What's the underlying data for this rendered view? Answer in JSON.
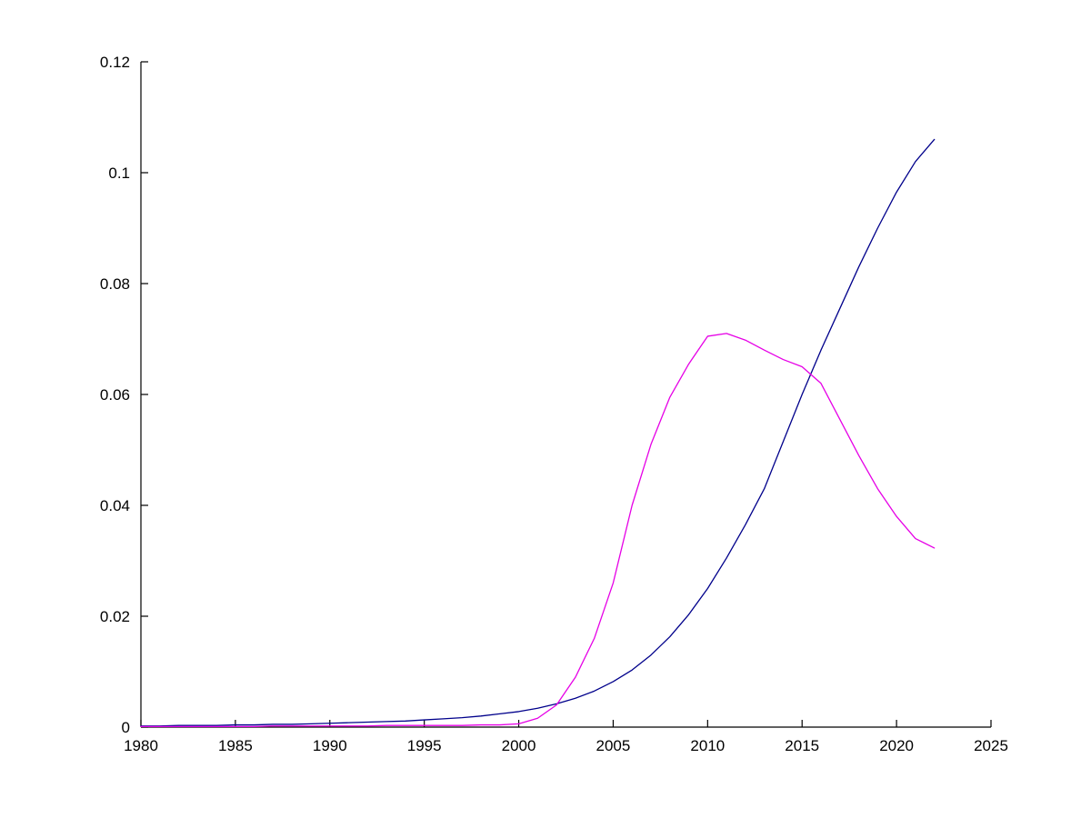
{
  "figure": {
    "background": "#ffffff",
    "axis_color": "#000000"
  },
  "chart_data": {
    "type": "line",
    "title": "",
    "xlabel": "",
    "ylabel": "",
    "xlim": [
      1980,
      2025
    ],
    "ylim": [
      0,
      0.12
    ],
    "xticks": [
      1980,
      1985,
      1990,
      1995,
      2000,
      2005,
      2010,
      2015,
      2020,
      2025
    ],
    "xtick_labels": [
      "1980",
      "1985",
      "1990",
      "1995",
      "2000",
      "2005",
      "2010",
      "2015",
      "2020",
      "2025"
    ],
    "yticks": [
      0,
      0.02,
      0.04,
      0.06,
      0.08,
      0.1,
      0.12
    ],
    "ytick_labels": [
      "0",
      "0.02",
      "0.04",
      "0.06",
      "0.08",
      "0.1",
      "0.12"
    ],
    "grid": false,
    "legend": null,
    "x": [
      1980,
      1981,
      1982,
      1983,
      1984,
      1985,
      1986,
      1987,
      1988,
      1989,
      1990,
      1991,
      1992,
      1993,
      1994,
      1995,
      1996,
      1997,
      1998,
      1999,
      2000,
      2001,
      2002,
      2003,
      2004,
      2005,
      2006,
      2007,
      2008,
      2009,
      2010,
      2011,
      2012,
      2013,
      2014,
      2015,
      2016,
      2017,
      2018,
      2019,
      2020,
      2021,
      2022
    ],
    "series": [
      {
        "name": "blue-rising-series",
        "color": "#00008B",
        "values": [
          0.0002,
          0.0002,
          0.0003,
          0.0003,
          0.0003,
          0.0004,
          0.0004,
          0.0005,
          0.0005,
          0.0006,
          0.0007,
          0.0008,
          0.0009,
          0.001,
          0.0011,
          0.0013,
          0.0015,
          0.0017,
          0.002,
          0.0024,
          0.0028,
          0.0034,
          0.0042,
          0.0052,
          0.0065,
          0.0082,
          0.0103,
          0.013,
          0.0163,
          0.0203,
          0.025,
          0.0305,
          0.0365,
          0.043,
          0.0515,
          0.06,
          0.068,
          0.0755,
          0.083,
          0.09,
          0.0965,
          0.102,
          0.106
        ]
      },
      {
        "name": "magenta-peaked-series",
        "color": "#E600E6",
        "values": [
          0.0001,
          0.0001,
          0.0001,
          0.0001,
          0.0001,
          0.0001,
          0.0001,
          0.0002,
          0.0002,
          0.0002,
          0.0002,
          0.0002,
          0.0002,
          0.0003,
          0.0003,
          0.0003,
          0.0003,
          0.0003,
          0.0004,
          0.0004,
          0.0006,
          0.0016,
          0.004,
          0.009,
          0.016,
          0.026,
          0.04,
          0.051,
          0.0595,
          0.0655,
          0.0705,
          0.071,
          0.0698,
          0.068,
          0.0663,
          0.065,
          0.062,
          0.0555,
          0.049,
          0.043,
          0.038,
          0.034,
          0.0323
        ]
      }
    ]
  }
}
